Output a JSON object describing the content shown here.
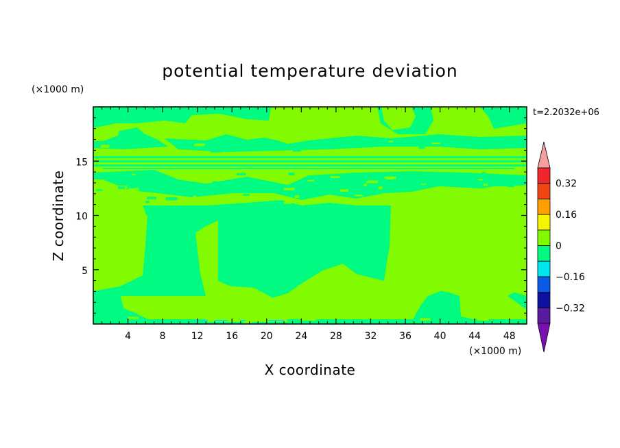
{
  "chart_data": {
    "type": "heatmap",
    "title": "potential temperature deviation",
    "xlabel": "X coordinate",
    "ylabel": "Z coordinate",
    "x_unit": "(×1000 m)",
    "y_unit": "(×1000 m)",
    "time_label": "t=2.2032e+06",
    "xlim": [
      0,
      50
    ],
    "ylim": [
      0,
      20
    ],
    "x_ticks": [
      4,
      8,
      12,
      16,
      20,
      24,
      28,
      32,
      36,
      40,
      44,
      48
    ],
    "y_ticks": [
      5,
      10,
      15
    ],
    "colorbar": {
      "levels": [
        -0.4,
        -0.32,
        -0.24,
        -0.16,
        -0.08,
        0,
        0.08,
        0.16,
        0.24,
        0.32,
        0.4
      ],
      "colors": [
        "#5a1aa0",
        "#1010a0",
        "#0a5ae6",
        "#00e6f0",
        "#00fa82",
        "#82fa00",
        "#f5f500",
        "#ffa000",
        "#f04612",
        "#f0262a"
      ],
      "under_color": "#7a10b4",
      "over_color": "#f5a0a0",
      "tick_labels": [
        {
          "value": -0.32,
          "label": "−0.32"
        },
        {
          "value": -0.16,
          "label": "−0.16"
        },
        {
          "value": 0,
          "label": "0"
        },
        {
          "value": 0.16,
          "label": "0.16"
        },
        {
          "value": 0.32,
          "label": "0.32"
        }
      ]
    },
    "regions": {
      "background_level": 0.04,
      "pos_level": 0.04,
      "neg_level": -0.04,
      "pos_color": "#82fa00",
      "neg_color": "#00fa82"
    }
  }
}
